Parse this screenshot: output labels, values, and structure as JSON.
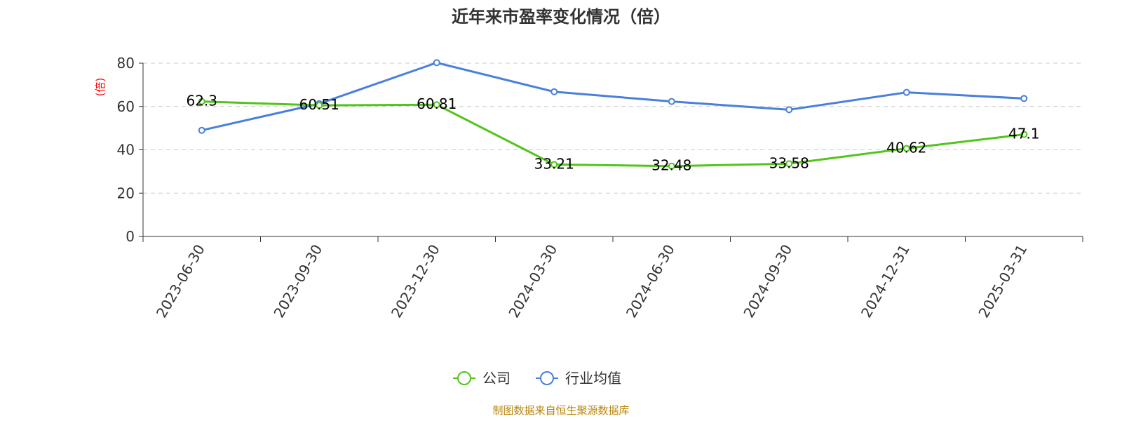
{
  "chart_data": {
    "type": "line",
    "title": "近年来市盈率变化情况（倍）",
    "ylabel": "(倍)",
    "xlabel": "",
    "categories": [
      "2023-06-30",
      "2023-09-30",
      "2023-12-30",
      "2024-03-30",
      "2024-06-30",
      "2024-09-30",
      "2024-12-31",
      "2025-03-31"
    ],
    "ylim": [
      0,
      80
    ],
    "yticks": [
      0,
      20,
      40,
      60,
      80
    ],
    "grid": true,
    "legend_position": "bottom-center",
    "series": [
      {
        "name": "公司",
        "color": "#52c41a",
        "values": [
          62.3,
          60.51,
          60.81,
          33.21,
          32.48,
          33.58,
          40.62,
          47.1
        ],
        "labels": [
          "62.3",
          "60.51",
          "60.81",
          "33.21",
          "32.48",
          "33.58",
          "40.62",
          "47.1"
        ]
      },
      {
        "name": "行业均值",
        "color": "#4a7fdc",
        "values": [
          49,
          61.3,
          80.2,
          66.8,
          62.3,
          58.5,
          66.5,
          63.7
        ]
      }
    ],
    "source": "制图数据来自恒生聚源数据库",
    "source_color": "#b8860b",
    "ylabel_color": "#ff0000"
  }
}
